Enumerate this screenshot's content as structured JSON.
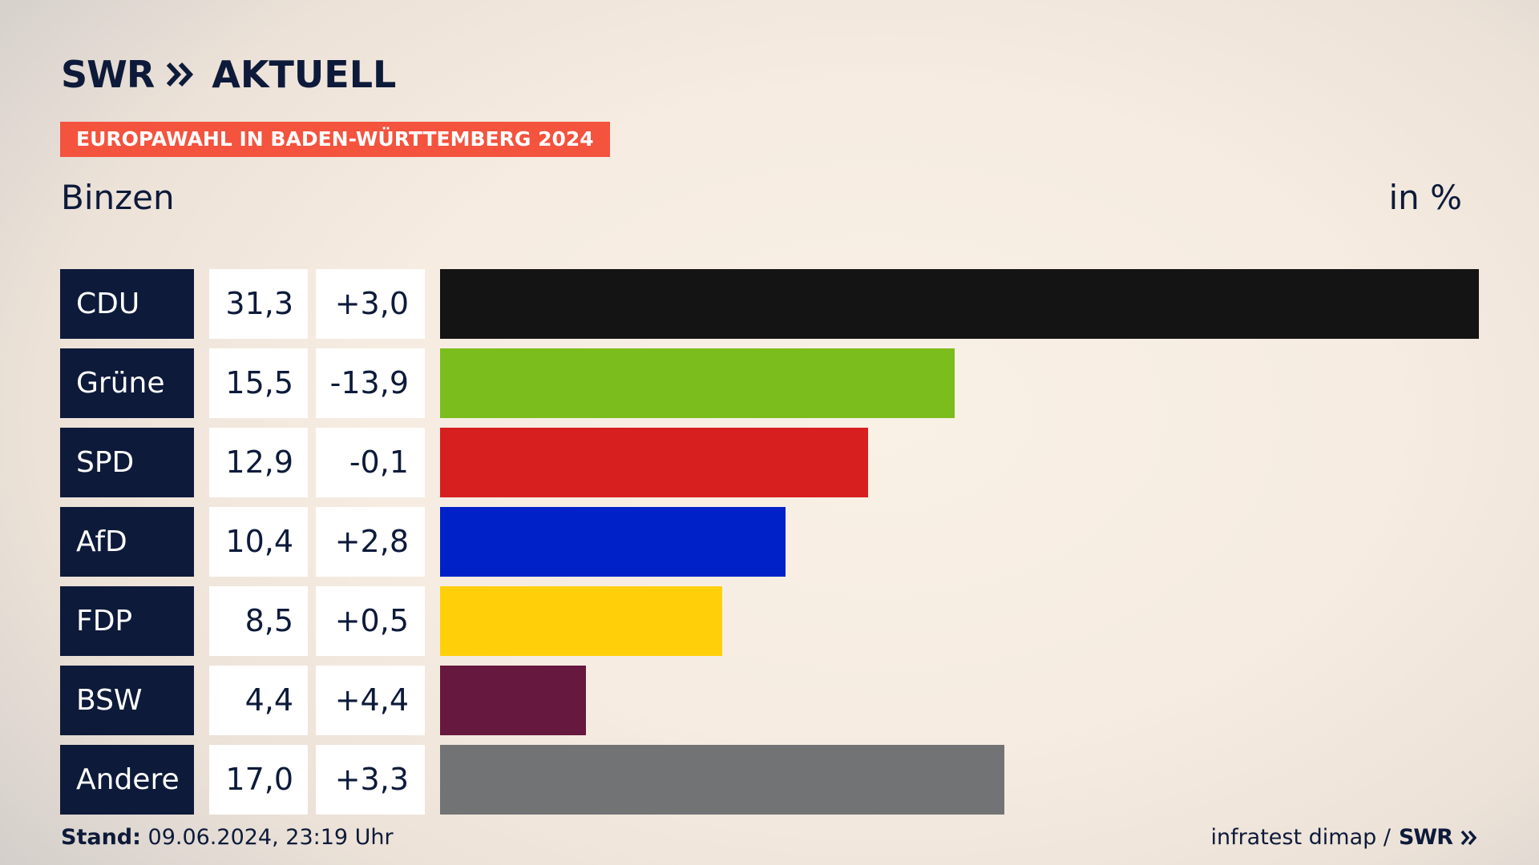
{
  "brand": {
    "logo_text": "SWR",
    "logo_icon": "double-chevron-icon",
    "product": "AKTUELL"
  },
  "banner": "EUROPAWAHL IN BADEN-WÜRTTEMBERG 2024",
  "place": "Binzen",
  "unit": "in %",
  "footer": {
    "stand_label": "Stand:",
    "stand_value": "09.06.2024, 23:19 Uhr",
    "source": "infratest dimap /",
    "source_logo": "SWR"
  },
  "chart_data": {
    "type": "bar",
    "orientation": "horizontal",
    "title": "EUROPAWAHL IN BADEN-WÜRTTEMBERG 2024",
    "subtitle": "Binzen",
    "unit": "in %",
    "categories": [
      "CDU",
      "Grüne",
      "SPD",
      "AfD",
      "FDP",
      "BSW",
      "Andere"
    ],
    "values": [
      31.3,
      15.5,
      12.9,
      10.4,
      8.5,
      4.4,
      17.0
    ],
    "value_labels": [
      "31,3",
      "15,5",
      "12,9",
      "10,4",
      "8,5",
      "4,4",
      "17,0"
    ],
    "changes": [
      3.0,
      -13.9,
      -0.1,
      2.8,
      0.5,
      4.4,
      3.3
    ],
    "change_labels": [
      "+3,0",
      "-13,9",
      "-0,1",
      "+2,8",
      "+0,5",
      "+4,4",
      "+3,3"
    ],
    "colors": [
      "#141414",
      "#7bbd1d",
      "#d71f1f",
      "#0021c8",
      "#ffd00a",
      "#66183e",
      "#727375"
    ],
    "xlim": [
      0,
      31.3
    ],
    "grid": false,
    "legend": "none"
  }
}
